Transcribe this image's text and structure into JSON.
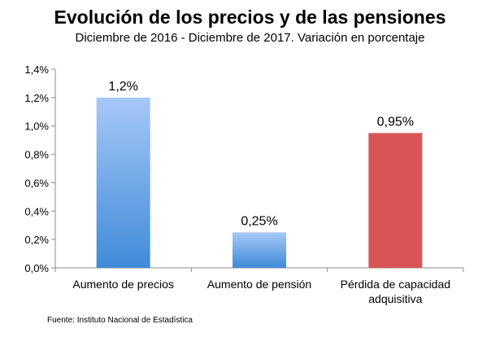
{
  "chart_data": {
    "type": "bar",
    "title": "Evolución de los precios y de las pensiones",
    "subtitle": "Diciembre de 2016 - Diciembre de 2017. Variación en porcentaje",
    "categories": [
      [
        "Aumento de precios"
      ],
      [
        "Aumento de pensión"
      ],
      [
        "Pérdida de capacidad",
        "adquisitiva"
      ]
    ],
    "values": [
      1.2,
      0.25,
      0.95
    ],
    "data_labels": [
      "1,2%",
      "0,25%",
      "0,95%"
    ],
    "bar_colors": [
      [
        "#a6c8f7",
        "#3f8ad8"
      ],
      [
        "#a6c8f7",
        "#3f8ad8"
      ],
      [
        "#d95555",
        "#d95555"
      ]
    ],
    "ylim": [
      0,
      1.4
    ],
    "yticks": [
      0,
      0.2,
      0.4,
      0.6,
      0.8,
      1.0,
      1.2,
      1.4
    ],
    "ytick_labels": [
      "0,0%",
      "0,2%",
      "0,4%",
      "0,6%",
      "0,8%",
      "1,0%",
      "1,2%",
      "1,4%"
    ],
    "grid": false,
    "legend": "none"
  },
  "source": "Fuente: Instituto Nacional de Estadística"
}
